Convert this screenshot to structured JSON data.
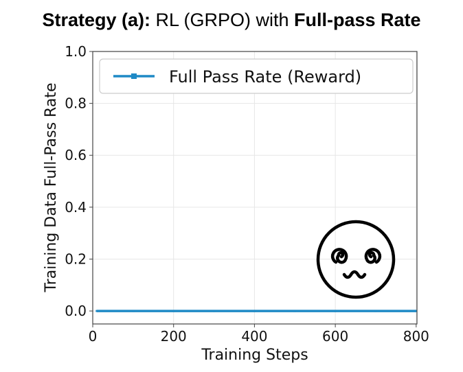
{
  "title": {
    "bold_prefix": "Strategy (a):",
    "middle": " RL (GRPO) with ",
    "bold_suffix": "Full-pass Rate"
  },
  "chart_data": {
    "type": "line",
    "xlabel": "Training Steps",
    "ylabel": "Training Data Full-Pass Rate",
    "xlim": [
      0,
      802
    ],
    "ylim": [
      -0.05,
      1.0
    ],
    "xticks": [
      0,
      200,
      400,
      600,
      800
    ],
    "xtick_labels": [
      "0",
      "200",
      "400",
      "600",
      "800"
    ],
    "yticks": [
      0.0,
      0.2,
      0.4,
      0.6,
      0.8,
      1.0
    ],
    "ytick_labels": [
      "0.0",
      "0.2",
      "0.4",
      "0.6",
      "0.8",
      "1.0"
    ],
    "grid": true,
    "legend_position": "top",
    "series": [
      {
        "name": "Full Pass Rate (Reward)",
        "color": "#1f8ac6",
        "marker": "square",
        "x": [
          10,
          100,
          200,
          300,
          400,
          500,
          600,
          700,
          800
        ],
        "y": [
          0,
          0,
          0,
          0,
          0,
          0,
          0,
          0,
          0
        ]
      }
    ],
    "annotation_icon": "dizzy-face-icon"
  }
}
